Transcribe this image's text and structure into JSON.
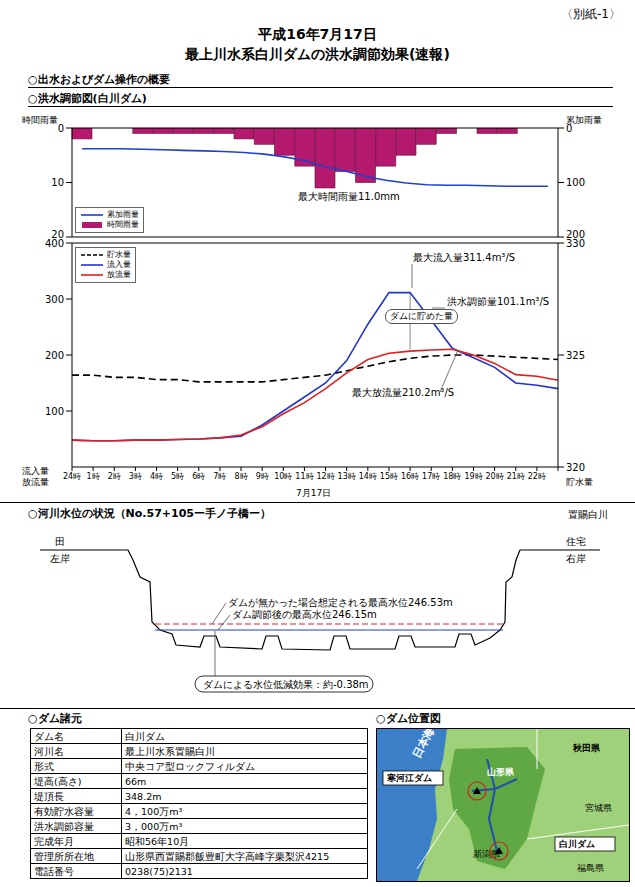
{
  "header": {
    "attachment": "〈別紙-1〉",
    "date": "平成16年7月17日",
    "title": "最上川水系白川ダムの洪水調節効果(速報)",
    "overview": "○出水およびダム操作の概要",
    "chart_heading": "○洪水調節図(白川ダム)"
  },
  "chart_data": [
    {
      "type": "bar",
      "categories": [
        "24時",
        "1時",
        "2時",
        "3時",
        "4時",
        "5時",
        "6時",
        "7時",
        "8時",
        "9時",
        "10時",
        "11時",
        "12時",
        "13時",
        "14時",
        "15時",
        "16時",
        "17時",
        "18時",
        "19時",
        "20時",
        "21時",
        "22時",
        null
      ],
      "ylabel": "時間雨量",
      "y2label": "累加雨量",
      "ylim": [
        0,
        20
      ],
      "yticks": [
        0,
        10,
        20
      ],
      "y2lim": [
        0,
        200
      ],
      "y2ticks": [
        0,
        100,
        200
      ],
      "tick_labels": "y",
      "legend": "lower left",
      "grid": false,
      "series": [
        {
          "name": "累加雨量",
          "type": "line",
          "color": "#1f3fd0",
          "axis": "y2",
          "values": [
            38,
            38,
            38,
            39,
            40,
            41,
            42,
            43,
            45,
            48,
            53,
            60,
            71,
            79,
            89,
            96,
            101,
            104,
            105,
            105,
            106,
            107,
            107,
            107
          ]
        },
        {
          "name": "時間雨量",
          "type": "bar",
          "color": "#b5196e",
          "values": [
            2,
            0,
            0,
            1,
            1,
            1,
            1,
            1,
            2,
            3,
            5,
            7,
            11,
            8,
            10,
            7,
            5,
            3,
            1,
            0,
            1,
            1,
            0,
            0
          ]
        }
      ],
      "annotations": [
        "最大時間雨量11.0mm"
      ]
    },
    {
      "type": "line",
      "categories": [
        "24時",
        "1時",
        "2時",
        "3時",
        "4時",
        "5時",
        "6時",
        "7時",
        "8時",
        "9時",
        "10時",
        "11時",
        "12時",
        "13時",
        "14時",
        "15時",
        "16時",
        "17時",
        "18時",
        "19時",
        "20時",
        "21時",
        "22時",
        null
      ],
      "x_sublabel": "7月17日",
      "ylabel_lines": [
        "流入量",
        "放流量"
      ],
      "y2label": "貯水量",
      "ylim": [
        0,
        400
      ],
      "yticks": [
        100,
        200,
        300,
        400
      ],
      "y2lim": [
        320,
        330
      ],
      "y2ticks": [
        320,
        325,
        330
      ],
      "legend": "upper left",
      "grid": false,
      "series": [
        {
          "name": "貯水量",
          "color": "#000000",
          "line_style": "dashed",
          "axis": "y2",
          "values": [
            324.1,
            324.1,
            324.0,
            324.0,
            323.9,
            323.9,
            323.8,
            323.8,
            323.8,
            323.8,
            323.9,
            324.0,
            324.1,
            324.3,
            324.5,
            324.7,
            324.85,
            324.95,
            325.0,
            325.0,
            324.95,
            324.9,
            324.85,
            324.8
          ]
        },
        {
          "name": "流入量",
          "color": "#2233cc",
          "values": [
            48,
            47,
            47,
            48,
            48,
            49,
            50,
            52,
            55,
            75,
            100,
            125,
            150,
            190,
            255,
            311.4,
            311.4,
            262,
            212,
            195,
            178,
            150,
            146,
            140
          ]
        },
        {
          "name": "放流量",
          "color": "#e02020",
          "values": [
            48,
            47,
            47,
            48,
            48,
            49,
            50,
            52,
            57,
            72,
            95,
            115,
            140,
            168,
            192,
            203,
            207,
            209,
            210.2,
            200,
            185,
            165,
            162,
            155
          ]
        }
      ],
      "annotations": [
        "最大流入量311.4m³/S",
        "洪水調節量101.1m³/S",
        "ダムに貯めた量",
        "最大放流量210.2m³/S"
      ]
    }
  ],
  "river_section": {
    "title": "○河川水位の状況（No.57+105ー手ノ子橋ー）",
    "river": "置賜白川",
    "left_bank": {
      "use": "田",
      "label": "左岸"
    },
    "right_bank": {
      "use": "住宅",
      "label": "右岸"
    },
    "levels": [
      {
        "text": "ダムが無かった場合想定される最高水位246.53m",
        "color": "#e02020",
        "line_style": "dashed"
      },
      {
        "text": "ダム調節後の最高水位246.15m",
        "color": "#2040d0",
        "line_style": "solid"
      }
    ],
    "effect": "ダムによる水位低減効果：約-0.38m"
  },
  "dam_specs": {
    "title": "○ダム諸元",
    "rows": [
      [
        "ダム名",
        "白川ダム"
      ],
      [
        "河川名",
        "最上川水系置賜白川"
      ],
      [
        "形式",
        "中央コア型ロックフィルダム"
      ],
      [
        "堤高(高さ)",
        "66m"
      ],
      [
        "堤頂長",
        "348.2m"
      ],
      [
        "有効貯水容量",
        "4，100万m³"
      ],
      [
        "洪水調節容量",
        "3，000万m³"
      ],
      [
        "完成年月",
        "昭和56年10月"
      ],
      [
        "管理所所在地",
        "山形県西置賜郡飯豊町大字高峰字栗梨沢4215"
      ],
      [
        "電話番号",
        "0238(75)2131"
      ]
    ]
  },
  "location_map": {
    "title": "○ダム位置図",
    "labels": [
      "日本海",
      "秋田県",
      "山形県",
      "宮城県",
      "新潟県",
      "福島県"
    ],
    "dams": [
      "寒河江ダム",
      "白川ダム"
    ]
  }
}
